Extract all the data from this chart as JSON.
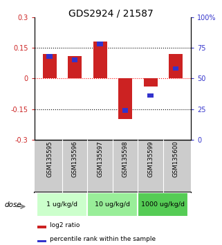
{
  "title": "GDS2924 / 21587",
  "samples": [
    "GSM135595",
    "GSM135596",
    "GSM135597",
    "GSM135598",
    "GSM135599",
    "GSM135600"
  ],
  "log2_ratio": [
    0.12,
    0.11,
    0.18,
    -0.2,
    -0.04,
    0.12
  ],
  "percentile_rank": [
    68,
    65,
    78,
    24,
    36,
    58
  ],
  "ylim_left": [
    -0.3,
    0.3
  ],
  "ylim_right": [
    0,
    100
  ],
  "yticks_left": [
    -0.3,
    -0.15,
    0,
    0.15,
    0.3
  ],
  "ytick_labels_left": [
    "-0.3",
    "-0.15",
    "0",
    "0.15",
    "0.3"
  ],
  "yticks_right": [
    0,
    25,
    50,
    75,
    100
  ],
  "ytick_labels_right": [
    "0",
    "25",
    "50",
    "75",
    "100%"
  ],
  "hlines_dotted": [
    0.15,
    -0.15
  ],
  "hline_red_dotted": 0,
  "bar_width": 0.55,
  "red_color": "#cc2222",
  "blue_color": "#3333cc",
  "dose_groups": [
    {
      "label": "1 ug/kg/d",
      "color": "#ccffcc",
      "start": 0,
      "end": 1
    },
    {
      "label": "10 ug/kg/d",
      "color": "#99ee99",
      "start": 2,
      "end": 3
    },
    {
      "label": "1000 ug/kg/d",
      "color": "#55cc55",
      "start": 4,
      "end": 5
    }
  ],
  "dose_label": "dose",
  "legend_red": "log2 ratio",
  "legend_blue": "percentile rank within the sample",
  "bg_color_plot": "#ffffff",
  "bg_color_samples": "#cccccc",
  "title_fontsize": 10,
  "tick_fontsize": 7
}
